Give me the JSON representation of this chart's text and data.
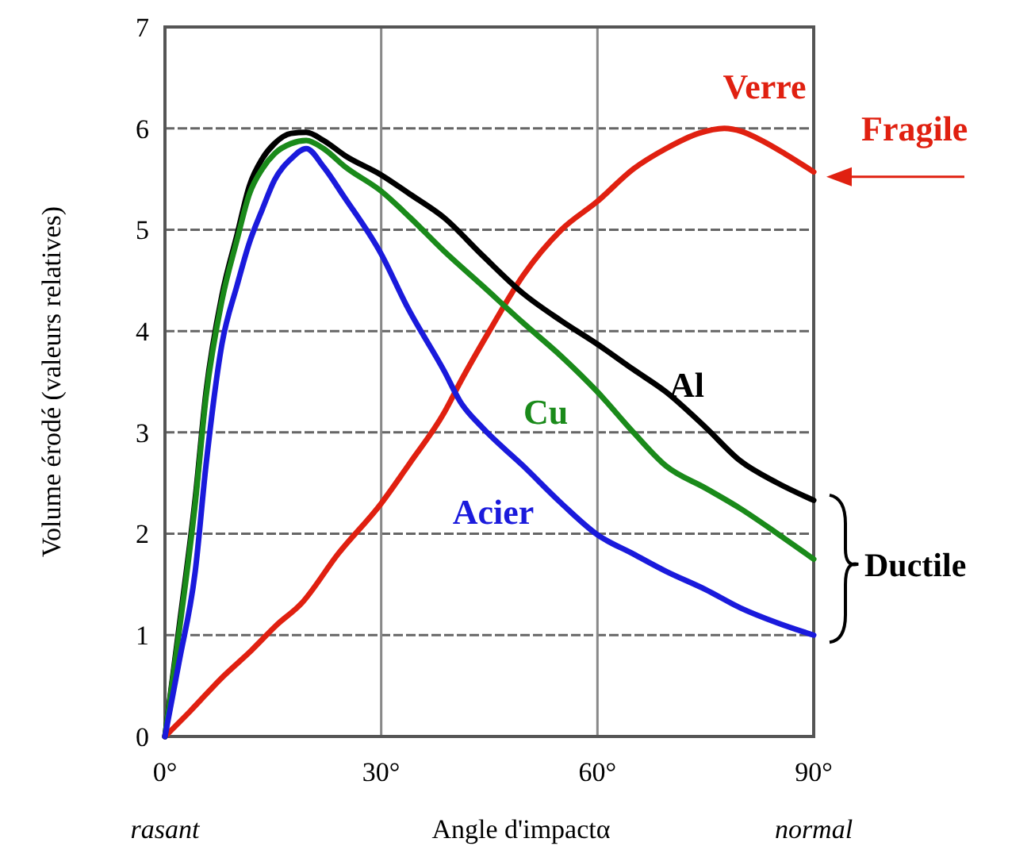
{
  "chart_data": {
    "type": "line",
    "xlabel": "Angle d'impactα",
    "ylabel": "Volume érodé (valeurs relatives)",
    "xlim": [
      0,
      90
    ],
    "ylim": [
      0,
      7
    ],
    "xticks": [
      {
        "value": 0,
        "label": "0°"
      },
      {
        "value": 30,
        "label": "30°"
      },
      {
        "value": 60,
        "label": "60°"
      },
      {
        "value": 90,
        "label": "90°"
      }
    ],
    "yticks": [
      0,
      1,
      2,
      3,
      4,
      5,
      6,
      7
    ],
    "grid": true,
    "marker": "none",
    "line_style": "solid",
    "series": [
      {
        "name": "Verre",
        "color": "#e02010",
        "x": [
          0,
          3.5,
          7.9,
          12,
          15.5,
          18.9,
          24,
          30,
          34,
          38.7,
          41,
          45,
          49.7,
          55,
          60,
          65,
          69.5,
          74,
          77.6,
          80,
          82.8,
          86,
          90
        ],
        "values": [
          0,
          0.25,
          0.58,
          0.85,
          1.1,
          1.31,
          1.8,
          2.3,
          2.7,
          3.19,
          3.5,
          4.0,
          4.55,
          5.0,
          5.28,
          5.6,
          5.8,
          5.95,
          6.0,
          5.97,
          5.88,
          5.75,
          5.57
        ]
      },
      {
        "name": "Al",
        "color": "#000000",
        "x": [
          0,
          2,
          4.2,
          5.7,
          7.9,
          10,
          11.7,
          13.5,
          15.2,
          17.5,
          19.6,
          22,
          25,
          30,
          34,
          38.7,
          44,
          49.7,
          55,
          60,
          65,
          69.5,
          75,
          79.8,
          85,
          90
        ],
        "values": [
          0,
          1.1,
          2.35,
          3.4,
          4.35,
          4.95,
          5.43,
          5.7,
          5.85,
          5.95,
          5.96,
          5.88,
          5.73,
          5.54,
          5.35,
          5.12,
          4.75,
          4.37,
          4.1,
          3.87,
          3.62,
          3.4,
          3.05,
          2.72,
          2.5,
          2.33
        ]
      },
      {
        "name": "Cu",
        "color": "#1a8a1a",
        "x": [
          0,
          2,
          4.2,
          5.7,
          7.9,
          10,
          11.7,
          13.5,
          15.2,
          17.5,
          19.6,
          22,
          25,
          30,
          34,
          38.7,
          44,
          49.7,
          55,
          60,
          65,
          69.5,
          75,
          79.8,
          85,
          90
        ],
        "values": [
          0,
          1.05,
          2.3,
          3.35,
          4.3,
          4.9,
          5.35,
          5.6,
          5.75,
          5.85,
          5.88,
          5.8,
          5.62,
          5.38,
          5.12,
          4.79,
          4.45,
          4.08,
          3.75,
          3.4,
          3.0,
          2.67,
          2.45,
          2.25,
          2.0,
          1.75
        ]
      },
      {
        "name": "Acier",
        "color": "#1a1adc",
        "x": [
          0,
          2,
          4.2,
          5.7,
          7.9,
          10,
          11.7,
          13.5,
          15.2,
          17.5,
          19.6,
          22,
          24.8,
          30,
          33.6,
          38.7,
          41,
          44,
          49.7,
          55,
          60,
          65,
          69.5,
          75,
          79.8,
          85,
          90
        ],
        "values": [
          0,
          0.75,
          1.63,
          2.68,
          3.87,
          4.45,
          4.87,
          5.2,
          5.49,
          5.7,
          5.8,
          5.62,
          5.33,
          4.76,
          4.24,
          3.61,
          3.3,
          3.05,
          2.67,
          2.3,
          1.99,
          1.8,
          1.63,
          1.45,
          1.27,
          1.12,
          1.0
        ]
      }
    ],
    "annotations": [
      {
        "text": "Fragile",
        "x": 90,
        "y": 5.57
      },
      {
        "text": "Ductile",
        "x": 90,
        "y": 1.7
      },
      "rasant",
      "normal"
    ]
  }
}
